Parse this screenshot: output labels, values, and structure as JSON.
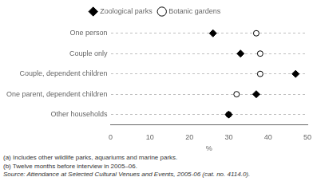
{
  "chart_data": {
    "type": "dot",
    "orientation": "horizontal",
    "categories": [
      "One person",
      "Couple only",
      "Couple, dependent children",
      "One parent, dependent children",
      "Other households"
    ],
    "series": [
      {
        "name": "Zoological parks",
        "color": "#000000",
        "marker": "diamond",
        "values": [
          26,
          33,
          47,
          37,
          30
        ]
      },
      {
        "name": "Botanic gardens",
        "color": "#ffffff",
        "marker": "circle",
        "values": [
          37,
          38,
          38,
          32,
          30
        ]
      }
    ],
    "xlabel": "%",
    "xlim": [
      0,
      50
    ],
    "xticks": [
      0,
      10,
      20,
      30,
      40,
      50
    ],
    "grid": true,
    "legend": "top",
    "annotations": [
      "(a) Includes other wildlife parks, aquariums and marine parks.",
      "(b) Twelve months before interview in 2005–06.",
      "Source: Attendance at Selected Cultural Venues and Events, 2005-06 (cat. no. 4114.0)."
    ]
  }
}
